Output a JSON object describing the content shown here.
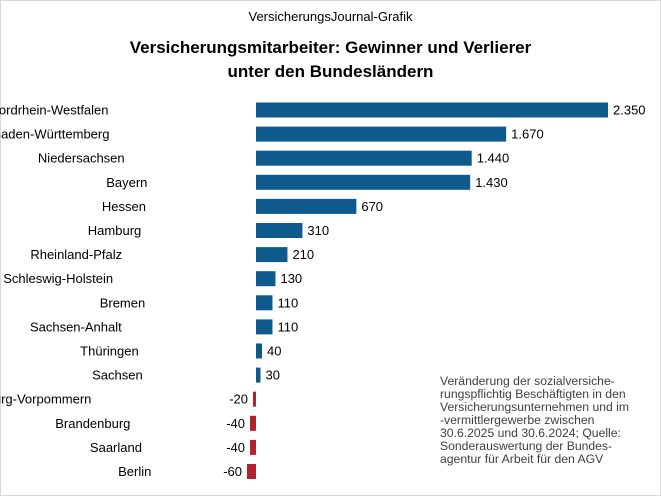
{
  "source": "VersicherungsJournal-Grafik",
  "title_lines": [
    "Versicherungsmitarbeiter: Gewinner und Verlierer",
    "unter den Bundesländern"
  ],
  "note_lines": [
    "Veränderung der sozialversiche-",
    "rungspflichtig Beschäftigten in den",
    "Versicherungsunternehmen und im",
    "-vermittlergewerbe zwischen",
    "30.6.2025 und 30.6.2024; Quelle:",
    "Sonderauswertung der Bundes-",
    "agentur für Arbeit für den AGV"
  ],
  "chart_data": {
    "type": "bar",
    "orientation": "horizontal",
    "categories": [
      "Nordrhein-Westfalen",
      "Baden-Württemberg",
      "Niedersachsen",
      "Bayern",
      "Hessen",
      "Hamburg",
      "Rheinland-Pfalz",
      "Schleswig-Holstein",
      "Bremen",
      "Sachsen-Anhalt",
      "Thüringen",
      "Sachsen",
      "Mecklenburg-Vorpommern",
      "Brandenburg",
      "Saarland",
      "Berlin"
    ],
    "values": [
      2350,
      1670,
      1440,
      1430,
      670,
      310,
      210,
      130,
      110,
      110,
      40,
      30,
      -20,
      -40,
      -40,
      -60
    ],
    "labels": [
      "2.350",
      "1.670",
      "1.440",
      "1.430",
      "670",
      "310",
      "210",
      "130",
      "110",
      "110",
      "40",
      "30",
      "-20",
      "-40",
      "-40",
      "-60"
    ],
    "colors": {
      "positive": "#0f5a8c",
      "negative": "#b1242e"
    },
    "grid": false,
    "legend": "none"
  }
}
